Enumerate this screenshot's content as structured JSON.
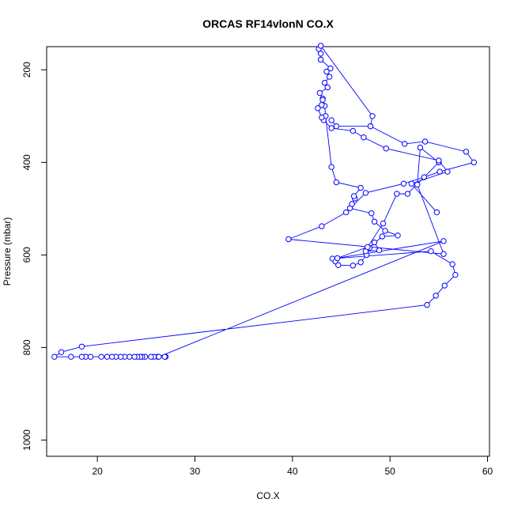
{
  "chart_data": {
    "type": "line",
    "title": "ORCAS RF14vlonN CO.X",
    "xlabel": "CO.X",
    "ylabel": "Pressure (mbar)",
    "xlim": [
      14.8,
      60.2
    ],
    "ylim": [
      1035,
      150
    ],
    "y_reversed": true,
    "x_ticks": [
      20,
      30,
      40,
      50,
      60
    ],
    "y_ticks": [
      200,
      400,
      600,
      800,
      1000
    ],
    "grid": false,
    "series": [
      {
        "color": "#0000ff",
        "marker": "open-circle",
        "points": [
          [
            27.0,
            820
          ],
          [
            26.9,
            820
          ],
          [
            26.2,
            820
          ],
          [
            25.8,
            820
          ],
          [
            25.5,
            820
          ],
          [
            24.9,
            820
          ],
          [
            24.6,
            820
          ],
          [
            24.4,
            820
          ],
          [
            24.1,
            820
          ],
          [
            23.8,
            820
          ],
          [
            23.3,
            820
          ],
          [
            22.8,
            820
          ],
          [
            22.4,
            820
          ],
          [
            21.9,
            820
          ],
          [
            21.5,
            820
          ],
          [
            21.0,
            820
          ],
          [
            20.4,
            820
          ],
          [
            19.3,
            820
          ],
          [
            18.8,
            820
          ],
          [
            18.4,
            820
          ],
          [
            17.3,
            820
          ],
          [
            15.6,
            820
          ],
          [
            16.3,
            810
          ],
          [
            18.4,
            798
          ],
          [
            53.8,
            708
          ],
          [
            54.7,
            688
          ],
          [
            55.6,
            666
          ],
          [
            56.7,
            643
          ],
          [
            56.4,
            620
          ],
          [
            54.2,
            592
          ],
          [
            44.1,
            608
          ],
          [
            44.4,
            614
          ],
          [
            44.7,
            622
          ],
          [
            46.2,
            623
          ],
          [
            47.0,
            616
          ],
          [
            47.6,
            600
          ],
          [
            47.9,
            585
          ],
          [
            48.4,
            573
          ],
          [
            48.9,
            590
          ],
          [
            47.5,
            592
          ],
          [
            49.2,
            560
          ],
          [
            50.8,
            558
          ],
          [
            49.5,
            548
          ],
          [
            48.4,
            528
          ],
          [
            48.1,
            510
          ],
          [
            45.9,
            499
          ],
          [
            46.1,
            490
          ],
          [
            46.4,
            478
          ],
          [
            46.3,
            473
          ],
          [
            47.0,
            455
          ],
          [
            44.5,
            443
          ],
          [
            44.0,
            410
          ],
          [
            43.4,
            300
          ],
          [
            43.3,
            278
          ],
          [
            43.1,
            262
          ],
          [
            42.8,
            250
          ],
          [
            43.6,
            238
          ],
          [
            43.3,
            228
          ],
          [
            43.8,
            215
          ],
          [
            43.5,
            204
          ],
          [
            43.9,
            197
          ],
          [
            42.9,
            178
          ],
          [
            42.9,
            165
          ],
          [
            42.7,
            155
          ],
          [
            42.9,
            148
          ],
          [
            48.2,
            300
          ],
          [
            48.0,
            322
          ],
          [
            51.5,
            360
          ],
          [
            53.6,
            355
          ],
          [
            57.8,
            377
          ],
          [
            58.6,
            400
          ],
          [
            55.1,
            420
          ],
          [
            53.5,
            432
          ],
          [
            51.4,
            446
          ],
          [
            47.5,
            466
          ],
          [
            45.5,
            508
          ],
          [
            43.0,
            538
          ],
          [
            39.6,
            566
          ],
          [
            55.5,
            598
          ],
          [
            52.8,
            448
          ],
          [
            53.1,
            368
          ],
          [
            55.0,
            400
          ],
          [
            51.8,
            468
          ],
          [
            50.7,
            468
          ],
          [
            49.3,
            532
          ],
          [
            47.7,
            583
          ],
          [
            44.6,
            607
          ],
          [
            55.5,
            570
          ],
          [
            26.3,
            820
          ]
        ]
      },
      {
        "color": "#0000ff",
        "marker": "open-circle",
        "points": [
          [
            54.8,
            508
          ],
          [
            52.2,
            446
          ],
          [
            55.9,
            420
          ],
          [
            55.0,
            396
          ],
          [
            49.6,
            370
          ],
          [
            47.3,
            346
          ],
          [
            46.2,
            332
          ],
          [
            44.0,
            326
          ],
          [
            43.2,
            309
          ],
          [
            43.0,
            303
          ],
          [
            42.6,
            283
          ],
          [
            43.0,
            276
          ],
          [
            43.1,
            265
          ]
        ]
      },
      {
        "color": "#0000ff",
        "marker": "open-circle",
        "points": [
          [
            44.0,
            309
          ],
          [
            44.5,
            322
          ],
          [
            48.0,
            322
          ]
        ]
      }
    ]
  }
}
